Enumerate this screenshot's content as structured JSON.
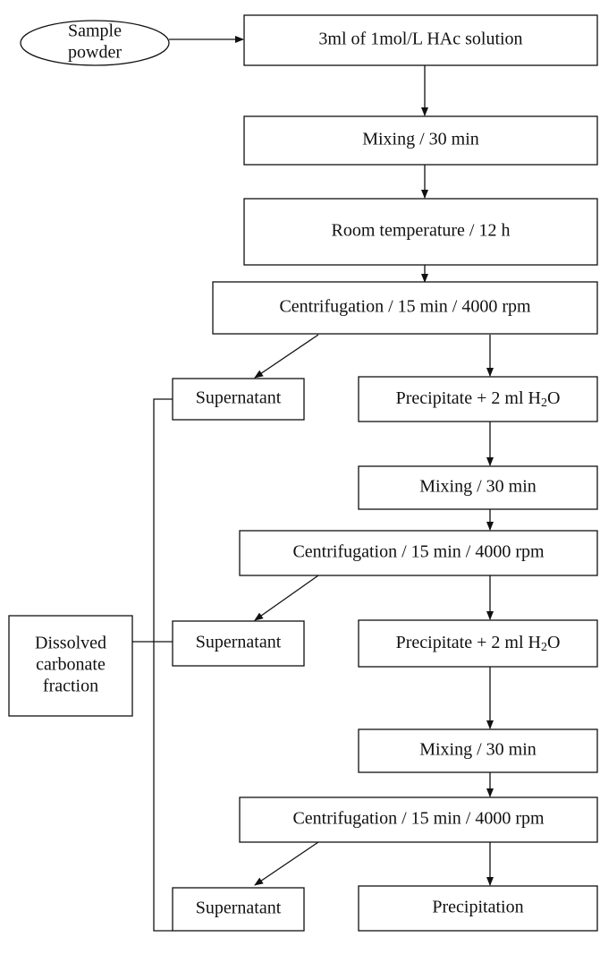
{
  "nodes": [
    {
      "lines": [
        "Sample",
        "powder"
      ]
    },
    {
      "lines": [
        "3ml of 1mol/L HAc solution"
      ]
    },
    {
      "lines": [
        "Mixing / 30 min"
      ]
    },
    {
      "lines": [
        "Room temperature / 12 h"
      ]
    },
    {
      "lines": [
        "Centrifugation / 15 min / 4000 rpm"
      ]
    },
    {
      "lines": [
        "Supernatant"
      ]
    },
    {
      "parts": [
        "Precipitate + 2 ml  H",
        "2",
        "O"
      ]
    },
    {
      "lines": [
        "Mixing / 30 min"
      ]
    },
    {
      "lines": [
        "Centrifugation / 15 min / 4000 rpm"
      ]
    },
    {
      "lines": [
        "Supernatant"
      ]
    },
    {
      "parts": [
        "Precipitate + 2 ml  H",
        "2",
        "O"
      ]
    },
    {
      "lines": [
        "Mixing / 30 min"
      ]
    },
    {
      "lines": [
        "Centrifugation / 15 min / 4000 rpm"
      ]
    },
    {
      "lines": [
        "Supernatant"
      ]
    },
    {
      "lines": [
        "Precipitation"
      ]
    },
    {
      "lines": [
        "Dissolved",
        "carbonate",
        "fraction"
      ]
    }
  ]
}
